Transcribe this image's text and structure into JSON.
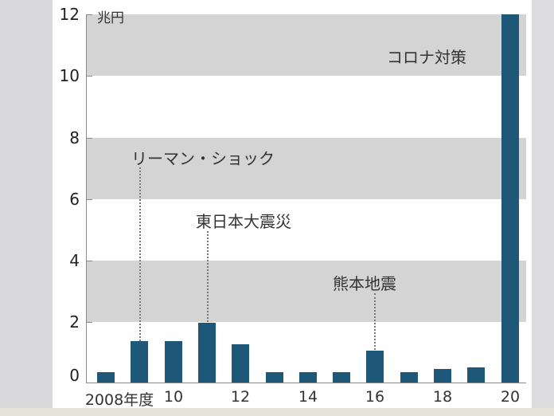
{
  "chart_data": {
    "type": "bar",
    "title": "",
    "unit": "兆円",
    "xlabel": "",
    "ylabel": "兆円",
    "ylim": [
      0,
      12
    ],
    "yticks": [
      "0",
      "2",
      "4",
      "6",
      "8",
      "10",
      "12"
    ],
    "categories": [
      "2008",
      "2009",
      "2010",
      "2011",
      "2012",
      "2013",
      "2014",
      "2015",
      "2016",
      "2017",
      "2018",
      "2019",
      "2020"
    ],
    "xtick_labels": [
      "2008年度",
      "10",
      "12",
      "14",
      "16",
      "18",
      "20"
    ],
    "values": [
      0.35,
      1.35,
      1.35,
      1.95,
      1.25,
      0.33,
      0.33,
      0.33,
      1.05,
      0.33,
      0.45,
      0.5,
      12
    ],
    "annotations": [
      {
        "text": "リーマン・ショック",
        "category": "2009"
      },
      {
        "text": "東日本大震災",
        "category": "2011"
      },
      {
        "text": "熊本地震",
        "category": "2016"
      },
      {
        "text": "コロナ対策",
        "category": "2020"
      }
    ],
    "colors": {
      "bar": "#1e5878",
      "band": "#d4d4d4"
    },
    "grid": "alternating horizontal bands"
  },
  "axis": {
    "y": [
      "0",
      "2",
      "4",
      "6",
      "8",
      "10",
      "12"
    ],
    "unit": "兆円",
    "x": [
      "2008年度",
      "10",
      "12",
      "14",
      "16",
      "18",
      "20"
    ]
  },
  "annotations": {
    "lehman": "リーマン・ショック",
    "tohoku": "東日本大震災",
    "kumamoto": "熊本地震",
    "corona": "コロナ対策"
  }
}
